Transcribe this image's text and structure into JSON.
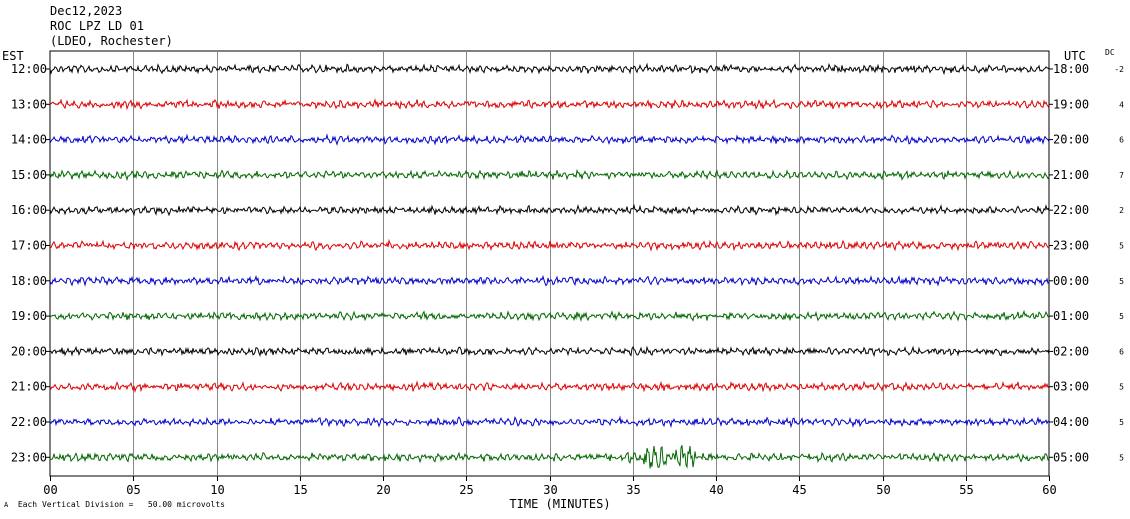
{
  "header": {
    "date": "Dec12,2023",
    "station": "ROC LPZ LD 01",
    "location": "(LDEO, Rochester)"
  },
  "labels": {
    "left_axis": "EST",
    "right_axis": "UTC",
    "dc_header": "DC",
    "footer_mark": "A",
    "footer_note": "Each Vertical Division =   50.00 microvolts"
  },
  "chart_data": {
    "type": "line",
    "title": "ROC LPZ LD 01",
    "xlabel": "TIME (MINUTES)",
    "xlim": [
      0,
      60
    ],
    "x_ticks": [
      "00",
      "05",
      "10",
      "15",
      "20",
      "25",
      "30",
      "35",
      "40",
      "45",
      "50",
      "55",
      "60"
    ],
    "grid": true,
    "series_colors": [
      "#000000",
      "#dd0000",
      "#0000cc",
      "#006600"
    ],
    "rows": [
      {
        "est": "12:00",
        "utc": "18:00",
        "dc": "-2"
      },
      {
        "est": "13:00",
        "utc": "19:00",
        "dc": "4"
      },
      {
        "est": "14:00",
        "utc": "20:00",
        "dc": "6"
      },
      {
        "est": "15:00",
        "utc": "21:00",
        "dc": "7"
      },
      {
        "est": "16:00",
        "utc": "22:00",
        "dc": "2"
      },
      {
        "est": "17:00",
        "utc": "23:00",
        "dc": "5"
      },
      {
        "est": "18:00",
        "utc": "00:00",
        "dc": "5"
      },
      {
        "est": "19:00",
        "utc": "01:00",
        "dc": "5"
      },
      {
        "est": "20:00",
        "utc": "02:00",
        "dc": "6"
      },
      {
        "est": "21:00",
        "utc": "03:00",
        "dc": "5"
      },
      {
        "est": "22:00",
        "utc": "04:00",
        "dc": "5"
      },
      {
        "est": "23:00",
        "utc": "05:00",
        "dc": "5"
      }
    ],
    "events": [
      {
        "row": 11,
        "start_min": 34.0,
        "end_min": 42.5
      }
    ]
  }
}
